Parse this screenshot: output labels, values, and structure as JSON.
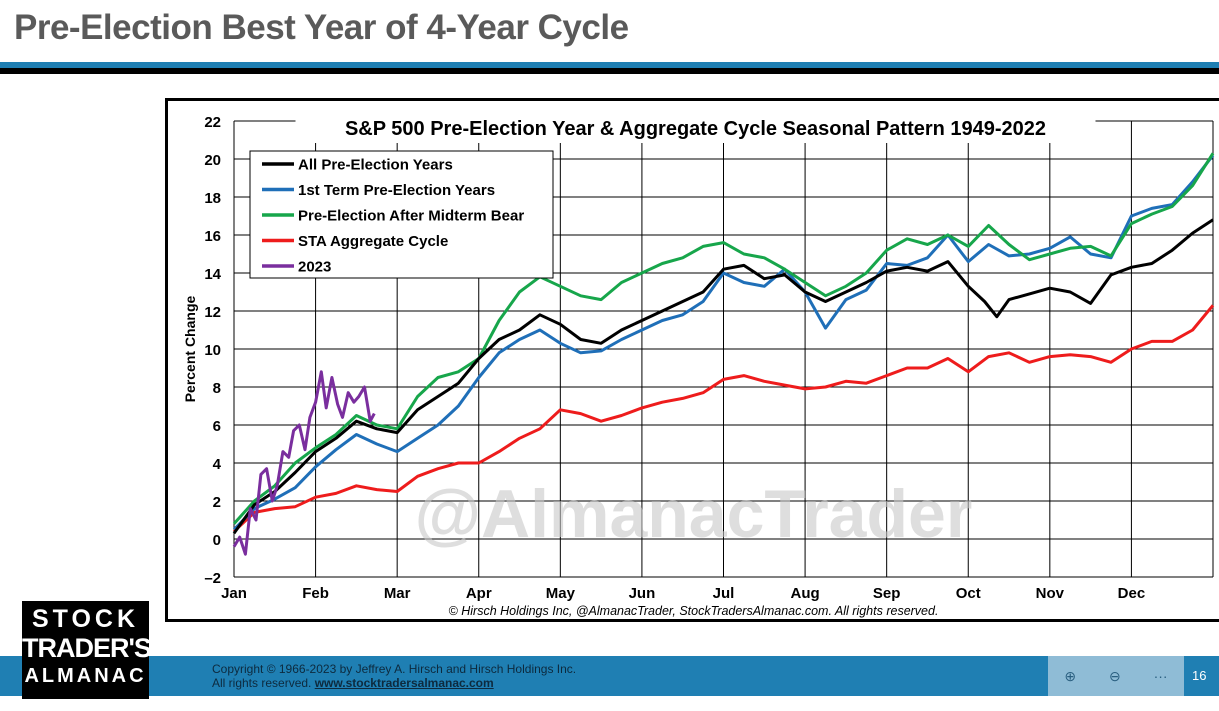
{
  "slide": {
    "title": "Pre-Election Best Year of 4-Year Cycle",
    "copyright_line1": "Copyright © 1966-2023 by Jeffrey A. Hirsch and Hirsch Holdings Inc.",
    "copyright_line2": "All rights reserved.",
    "copyright_link": "www.stocktradersalmanac.com",
    "page_number": "16",
    "logo": {
      "line1": "STOCK",
      "line2": "TRADER'S",
      "line3": "ALMANAC"
    },
    "controls": {
      "zoom_in": "⊕",
      "zoom_out": "⊖",
      "more": "···"
    }
  },
  "colors": {
    "all": "#000000",
    "first": "#1f6fb8",
    "midterm": "#17a64b",
    "sta": "#ee1c1c",
    "y2023": "#7a2e9e",
    "accent_blue": "#1f7fb3"
  },
  "chart_data": {
    "type": "line",
    "title": "S&P 500 Pre-Election Year & Aggregate Cycle Seasonal Pattern 1949-2022",
    "ylabel": "Percent Change",
    "xlabel": "",
    "ylim": [
      -2,
      22
    ],
    "xlim": [
      0,
      12
    ],
    "yticks": [
      -2,
      0,
      2,
      4,
      6,
      8,
      10,
      12,
      14,
      16,
      18,
      20,
      22
    ],
    "ytick_labels": [
      "–2",
      "0",
      "2",
      "4",
      "6",
      "8",
      "10",
      "12",
      "14",
      "16",
      "18",
      "20",
      "22"
    ],
    "months": [
      "Jan",
      "Feb",
      "Mar",
      "Apr",
      "May",
      "Jun",
      "Jul",
      "Aug",
      "Sep",
      "Oct",
      "Nov",
      "Dec"
    ],
    "grid": true,
    "legend_position": "top-left",
    "watermark": "@AlmanacTrader",
    "source_note": "© Hirsch Holdings Inc, @AlmanacTrader, StockTradersAlmanac.com. All rights reserved.",
    "series": [
      {
        "name": "All Pre-Election Years",
        "color_key": "all",
        "x": [
          0,
          0.25,
          0.5,
          0.75,
          1.0,
          1.25,
          1.5,
          1.75,
          2.0,
          2.25,
          2.5,
          2.75,
          3.0,
          3.25,
          3.5,
          3.75,
          4.0,
          4.25,
          4.5,
          4.75,
          5.0,
          5.25,
          5.5,
          5.75,
          6.0,
          6.25,
          6.5,
          6.75,
          7.0,
          7.25,
          7.5,
          7.75,
          8.0,
          8.25,
          8.5,
          8.75,
          9.0,
          9.2,
          9.35,
          9.5,
          9.75,
          10.0,
          10.25,
          10.5,
          10.75,
          11.0,
          11.25,
          11.5,
          11.75,
          12.0
        ],
        "y": [
          0.3,
          1.8,
          2.5,
          3.5,
          4.6,
          5.3,
          6.2,
          5.8,
          5.6,
          6.8,
          7.5,
          8.2,
          9.5,
          10.5,
          11.0,
          11.8,
          11.3,
          10.5,
          10.3,
          11.0,
          11.5,
          12.0,
          12.5,
          13.0,
          14.2,
          14.4,
          13.7,
          13.9,
          13.0,
          12.5,
          13.0,
          13.5,
          14.1,
          14.3,
          14.1,
          14.6,
          13.3,
          12.5,
          11.7,
          12.6,
          12.9,
          13.2,
          13.0,
          12.4,
          13.9,
          14.3,
          14.5,
          15.2,
          16.1,
          16.8
        ]
      },
      {
        "name": "1st Term Pre-Election Years",
        "color_key": "first",
        "x": [
          0,
          0.25,
          0.5,
          0.75,
          1.0,
          1.25,
          1.5,
          1.75,
          2.0,
          2.25,
          2.5,
          2.75,
          3.0,
          3.25,
          3.5,
          3.75,
          4.0,
          4.25,
          4.5,
          4.75,
          5.0,
          5.25,
          5.5,
          5.75,
          6.0,
          6.25,
          6.5,
          6.75,
          7.0,
          7.25,
          7.5,
          7.75,
          8.0,
          8.25,
          8.5,
          8.75,
          9.0,
          9.25,
          9.5,
          9.75,
          10.0,
          10.25,
          10.5,
          10.75,
          11.0,
          11.25,
          11.5,
          11.75,
          12.0
        ],
        "y": [
          0.5,
          1.6,
          2.1,
          2.7,
          3.8,
          4.7,
          5.5,
          5.0,
          4.6,
          5.3,
          6.0,
          7.0,
          8.5,
          9.8,
          10.5,
          11.0,
          10.3,
          9.8,
          9.9,
          10.5,
          11.0,
          11.5,
          11.8,
          12.5,
          14.0,
          13.5,
          13.3,
          14.2,
          13.0,
          11.1,
          12.6,
          13.1,
          14.5,
          14.4,
          14.8,
          16.0,
          14.6,
          15.5,
          14.9,
          15.0,
          15.3,
          15.9,
          15.0,
          14.8,
          17.0,
          17.4,
          17.6,
          18.8,
          20.2
        ]
      },
      {
        "name": "Pre-Election After Midterm Bear",
        "color_key": "midterm",
        "x": [
          0,
          0.25,
          0.5,
          0.75,
          1.0,
          1.25,
          1.5,
          1.75,
          2.0,
          2.25,
          2.5,
          2.75,
          3.0,
          3.25,
          3.5,
          3.75,
          4.0,
          4.25,
          4.5,
          4.75,
          5.0,
          5.25,
          5.5,
          5.75,
          6.0,
          6.25,
          6.5,
          6.75,
          7.0,
          7.25,
          7.5,
          7.75,
          8.0,
          8.25,
          8.5,
          8.75,
          9.0,
          9.25,
          9.5,
          9.75,
          10.0,
          10.25,
          10.5,
          10.75,
          11.0,
          11.25,
          11.5,
          11.75,
          12.0
        ],
        "y": [
          0.8,
          2.0,
          2.8,
          4.0,
          4.8,
          5.5,
          6.5,
          6.0,
          5.8,
          7.5,
          8.5,
          8.8,
          9.5,
          11.5,
          13.0,
          13.8,
          13.3,
          12.8,
          12.6,
          13.5,
          14.0,
          14.5,
          14.8,
          15.4,
          15.6,
          15.0,
          14.8,
          14.2,
          13.5,
          12.8,
          13.3,
          14.0,
          15.2,
          15.8,
          15.5,
          16.0,
          15.4,
          16.5,
          15.5,
          14.7,
          15.0,
          15.3,
          15.4,
          14.9,
          16.6,
          17.1,
          17.5,
          18.6,
          20.3
        ]
      },
      {
        "name": "STA Aggregate Cycle",
        "color_key": "sta",
        "x": [
          0,
          0.25,
          0.5,
          0.75,
          1.0,
          1.25,
          1.5,
          1.75,
          2.0,
          2.25,
          2.5,
          2.75,
          3.0,
          3.25,
          3.5,
          3.75,
          4.0,
          4.25,
          4.5,
          4.75,
          5.0,
          5.25,
          5.5,
          5.75,
          6.0,
          6.25,
          6.5,
          6.75,
          7.0,
          7.25,
          7.5,
          7.75,
          8.0,
          8.25,
          8.5,
          8.75,
          9.0,
          9.25,
          9.5,
          9.75,
          10.0,
          10.25,
          10.5,
          10.75,
          11.0,
          11.25,
          11.5,
          11.75,
          12.0
        ],
        "y": [
          0.4,
          1.4,
          1.6,
          1.7,
          2.2,
          2.4,
          2.8,
          2.6,
          2.5,
          3.3,
          3.7,
          4.0,
          4.0,
          4.6,
          5.3,
          5.8,
          6.8,
          6.6,
          6.2,
          6.5,
          6.9,
          7.2,
          7.4,
          7.7,
          8.4,
          8.6,
          8.3,
          8.1,
          7.9,
          8.0,
          8.3,
          8.2,
          8.6,
          9.0,
          9.0,
          9.5,
          8.8,
          9.6,
          9.8,
          9.3,
          9.6,
          9.7,
          9.6,
          9.3,
          10.0,
          10.4,
          10.4,
          11.0,
          12.3
        ]
      },
      {
        "name": "2023",
        "color_key": "y2023",
        "x": [
          0,
          0.07,
          0.14,
          0.2,
          0.27,
          0.33,
          0.4,
          0.47,
          0.53,
          0.6,
          0.67,
          0.73,
          0.8,
          0.87,
          0.93,
          1.0,
          1.07,
          1.13,
          1.2,
          1.27,
          1.33,
          1.4,
          1.47,
          1.53,
          1.6,
          1.67,
          1.72
        ],
        "y": [
          -0.4,
          0.1,
          -0.8,
          1.6,
          1.0,
          3.4,
          3.7,
          2.0,
          2.8,
          4.6,
          4.3,
          5.7,
          6.0,
          4.7,
          6.4,
          7.2,
          8.8,
          6.9,
          8.5,
          7.1,
          6.4,
          7.7,
          7.2,
          7.5,
          8.0,
          6.2,
          6.6
        ]
      }
    ]
  }
}
